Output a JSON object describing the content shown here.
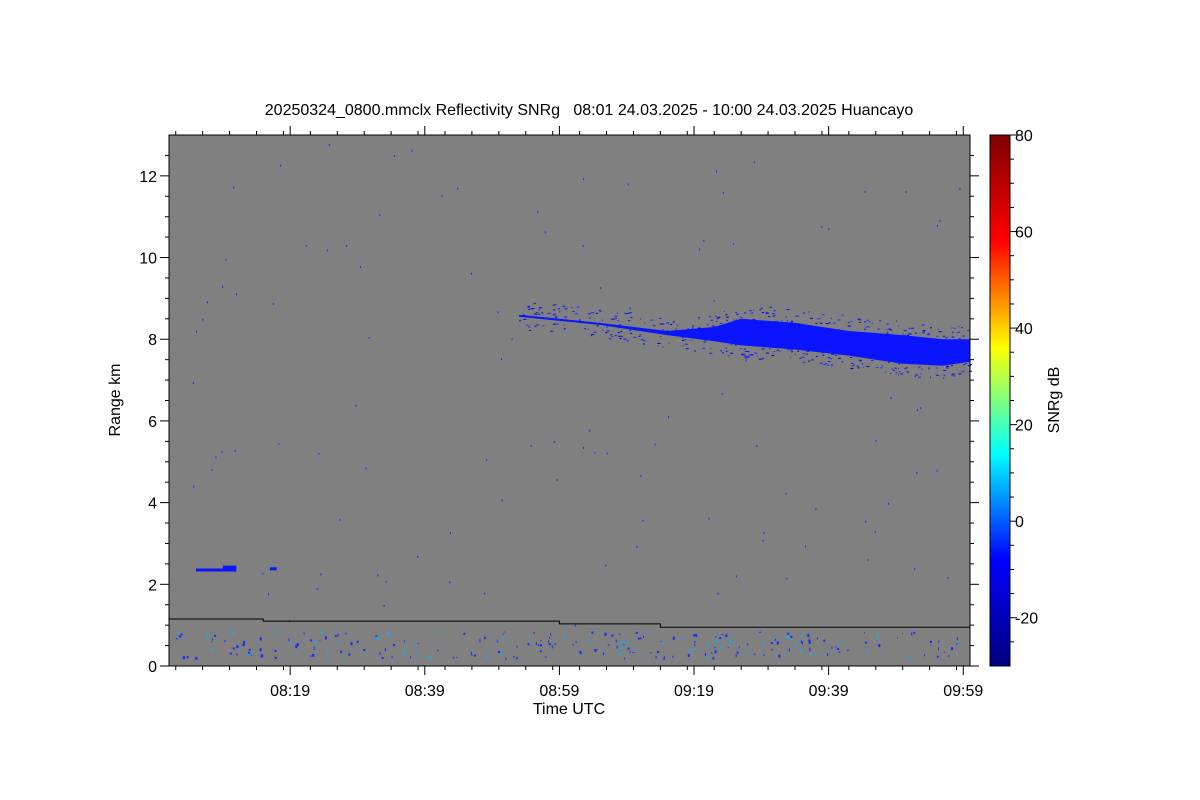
{
  "chart_data": {
    "type": "heatmap",
    "title": "20250324_0800.mmclx Reflectivity SNRg   08:01 24.03.2025 - 10:00 24.03.2025 Huancayo",
    "xlabel": "Time UTC",
    "ylabel": "Range km",
    "x_range_minutes_utc": [
      481,
      600
    ],
    "y_range_km": [
      0,
      13
    ],
    "x_ticks": [
      {
        "label": "08:19",
        "minute": 499
      },
      {
        "label": "08:39",
        "minute": 519
      },
      {
        "label": "08:59",
        "minute": 539
      },
      {
        "label": "09:19",
        "minute": 559
      },
      {
        "label": "09:39",
        "minute": 579
      },
      {
        "label": "09:59",
        "minute": 599
      }
    ],
    "y_ticks": [
      {
        "label": "0",
        "value": 0
      },
      {
        "label": "2",
        "value": 2
      },
      {
        "label": "4",
        "value": 4
      },
      {
        "label": "6",
        "value": 6
      },
      {
        "label": "8",
        "value": 8
      },
      {
        "label": "10",
        "value": 10
      },
      {
        "label": "12",
        "value": 12
      }
    ],
    "background_color": "#808080",
    "colorbar": {
      "label": "SNRg dB",
      "range_db": [
        -30,
        80
      ],
      "ticks": [
        {
          "label": "-20",
          "value": -20
        },
        {
          "label": "0",
          "value": 0
        },
        {
          "label": "20",
          "value": 20
        },
        {
          "label": "40",
          "value": 40
        },
        {
          "label": "60",
          "value": 60
        },
        {
          "label": "80",
          "value": 80
        }
      ],
      "colormap": [
        "#000080",
        "#0000ff",
        "#00ffff",
        "#ffff00",
        "#ff0000",
        "#800000"
      ]
    },
    "cloud_layer": {
      "snr_db": -18,
      "color": "#0a14ff",
      "top_km": [
        [
          533,
          8.6
        ],
        [
          545,
          8.4
        ],
        [
          555,
          8.2
        ],
        [
          562,
          8.3
        ],
        [
          566,
          8.5
        ],
        [
          574,
          8.4
        ],
        [
          582,
          8.2
        ],
        [
          590,
          8.1
        ],
        [
          596,
          8.0
        ],
        [
          600,
          8.0
        ]
      ],
      "base_km": [
        [
          533,
          8.55
        ],
        [
          545,
          8.35
        ],
        [
          555,
          8.1
        ],
        [
          562,
          7.95
        ],
        [
          566,
          7.85
        ],
        [
          574,
          7.75
        ],
        [
          582,
          7.6
        ],
        [
          590,
          7.4
        ],
        [
          596,
          7.35
        ],
        [
          600,
          7.45
        ]
      ]
    },
    "low_echoes": [
      {
        "start_minute": 485,
        "end_minute": 491,
        "range_km": 2.35
      },
      {
        "start_minute": 489,
        "end_minute": 491,
        "range_km": 2.42
      },
      {
        "start_minute": 496,
        "end_minute": 497,
        "range_km": 2.38
      }
    ],
    "threshold_line": {
      "color": "#000000",
      "points": [
        [
          481,
          1.15
        ],
        [
          495,
          1.15
        ],
        [
          495,
          1.1
        ],
        [
          539,
          1.1
        ],
        [
          539,
          1.03
        ],
        [
          554,
          1.03
        ],
        [
          554,
          0.95
        ],
        [
          600,
          0.95
        ]
      ]
    }
  }
}
